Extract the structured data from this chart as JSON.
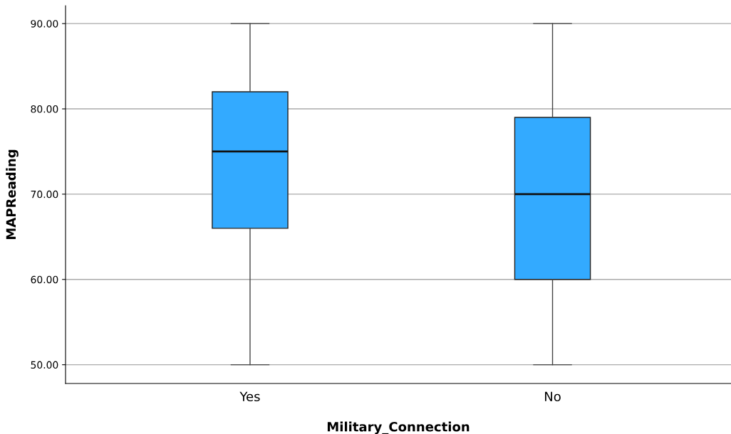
{
  "chart_data": {
    "type": "box",
    "xlabel": "Military_Connection",
    "ylabel": "MAPReading",
    "categories": [
      "Yes",
      "No"
    ],
    "boxes": [
      {
        "low": 50,
        "q1": 66,
        "median": 75,
        "q3": 82,
        "high": 90
      },
      {
        "low": 50,
        "q1": 60,
        "median": 70,
        "q3": 79,
        "high": 90
      }
    ],
    "color": "#33aaff",
    "ylim": [
      47.8,
      92.1
    ],
    "yticks": [
      {
        "value": 50,
        "label": "50.00"
      },
      {
        "value": 60,
        "label": "60.00"
      },
      {
        "value": 70,
        "label": "70.00"
      },
      {
        "value": 80,
        "label": "80.00"
      },
      {
        "value": 90,
        "label": "90.00"
      }
    ],
    "grid": "y"
  }
}
